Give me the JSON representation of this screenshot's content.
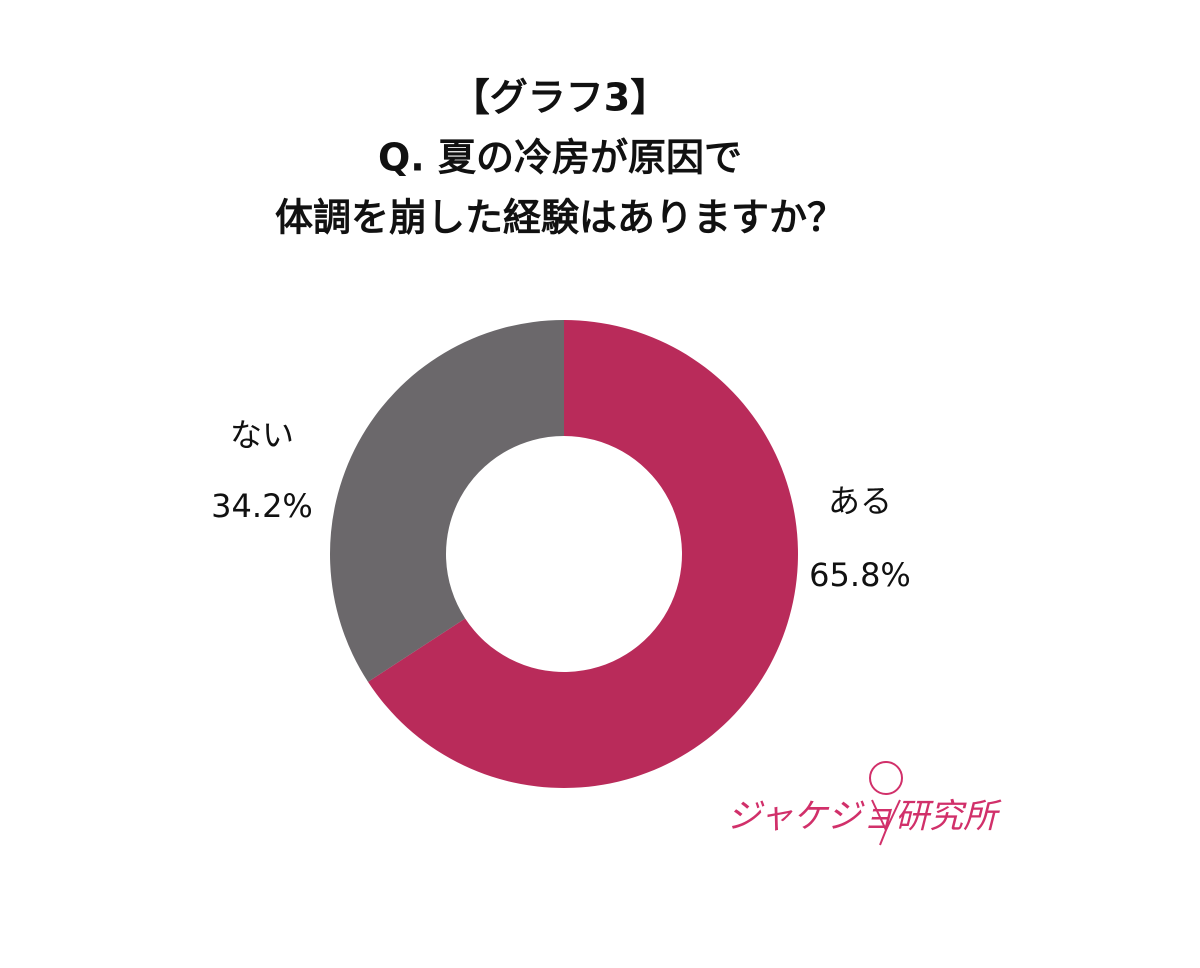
{
  "chart_data": {
    "type": "donut",
    "title": [
      "【グラフ3】",
      "Q. 夏の冷房が原因で",
      "体調を崩した経験はありますか？"
    ],
    "categories": [
      "ある",
      "ない"
    ],
    "values": [
      65.8,
      34.2
    ],
    "value_labels": [
      "65.8%",
      "34.2%"
    ],
    "colors": [
      "#b92b5a",
      "#6b686b"
    ],
    "logo": "ジャケジョ研究所"
  }
}
